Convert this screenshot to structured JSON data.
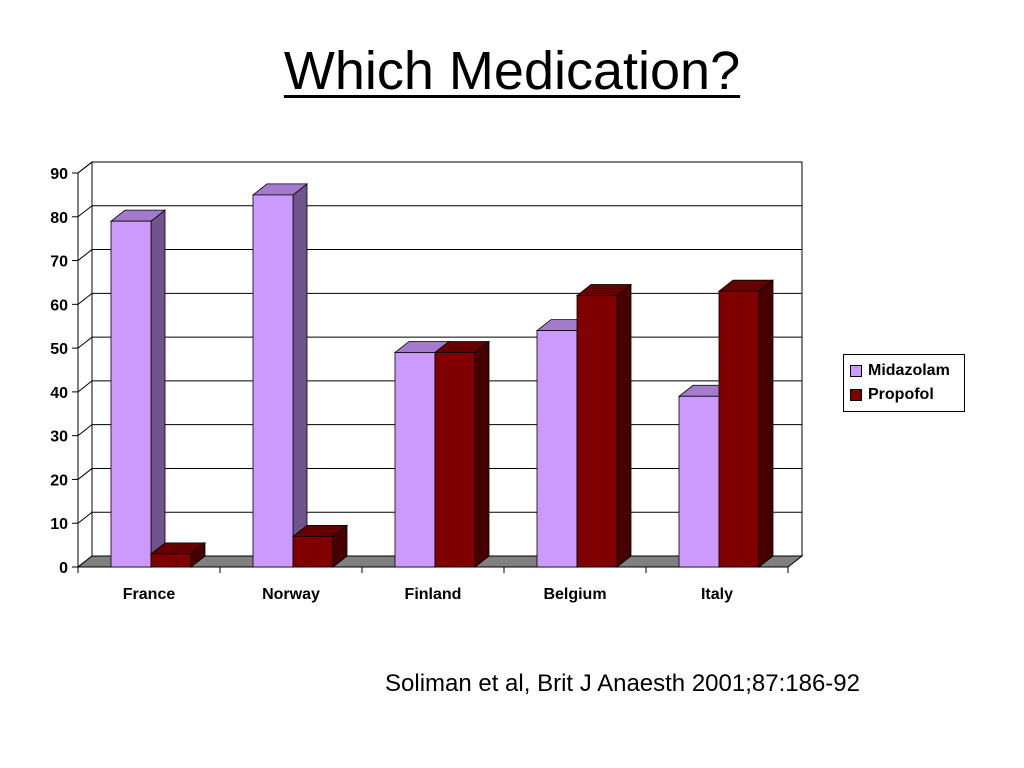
{
  "slide": {
    "title": "Which Medication?",
    "citation": "Soliman et al, Brit J Anaesth 2001;87:186-92"
  },
  "chart_data": {
    "type": "bar",
    "categories": [
      "France",
      "Norway",
      "Finland",
      "Belgium",
      "Italy"
    ],
    "series": [
      {
        "name": "Midazolam",
        "values": [
          79,
          85,
          49,
          54,
          39
        ],
        "color": "#cc99ff"
      },
      {
        "name": "Propofol",
        "values": [
          3,
          7,
          49,
          62,
          63
        ],
        "color": "#800000"
      }
    ],
    "ylim": [
      0,
      90
    ],
    "yticks": [
      0,
      10,
      20,
      30,
      40,
      50,
      60,
      70,
      80,
      90
    ],
    "grid": true,
    "legend": "right",
    "style": "3d-column"
  }
}
